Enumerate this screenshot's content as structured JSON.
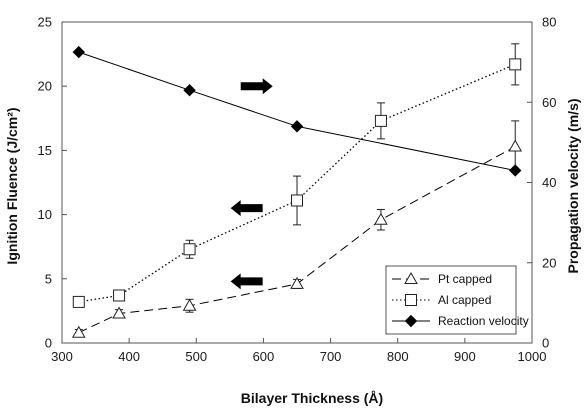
{
  "chart_data": {
    "type": "line",
    "xlabel": "Bilayer Thickness (Å)",
    "ylabel_left": "Ignition Fluence (J/cm²)",
    "ylabel_right": "Propagation velocity (m/s)",
    "xlim": [
      300,
      1000
    ],
    "xticks": [
      300,
      400,
      500,
      600,
      700,
      800,
      900,
      1000
    ],
    "ylim_left": [
      0,
      25
    ],
    "yticks_left": [
      0,
      5,
      10,
      15,
      20,
      25
    ],
    "ylim_right": [
      0,
      80
    ],
    "yticks_right": [
      0,
      20,
      40,
      60,
      80
    ],
    "legend_position": "bottom-right",
    "series": [
      {
        "name": "Pt capped",
        "axis": "left",
        "marker": "triangle-open",
        "line": "dashed",
        "x": [
          325,
          385,
          490,
          650,
          775,
          975
        ],
        "y": [
          0.8,
          2.3,
          2.9,
          4.6,
          9.6,
          15.3
        ],
        "err": [
          0.25,
          0.3,
          0.5,
          0.35,
          0.8,
          2.0
        ]
      },
      {
        "name": "Al capped",
        "axis": "left",
        "marker": "square-open",
        "line": "dotted",
        "x": [
          325,
          385,
          490,
          650,
          775,
          975
        ],
        "y": [
          3.2,
          3.7,
          7.3,
          11.1,
          17.3,
          21.7
        ],
        "err": [
          0.3,
          0.3,
          0.7,
          1.9,
          1.4,
          1.6
        ]
      },
      {
        "name": "Reaction velocity",
        "axis": "right",
        "marker": "diamond-filled",
        "line": "solid",
        "x": [
          325,
          490,
          650,
          975
        ],
        "y": [
          72.5,
          63,
          54,
          43
        ]
      }
    ],
    "annotations": [
      {
        "type": "arrow",
        "direction": "right",
        "x": 590,
        "y_left": 20.0
      },
      {
        "type": "arrow",
        "direction": "left",
        "x": 575,
        "y_left": 10.5
      },
      {
        "type": "arrow",
        "direction": "left",
        "x": 575,
        "y_left": 4.8
      }
    ]
  }
}
